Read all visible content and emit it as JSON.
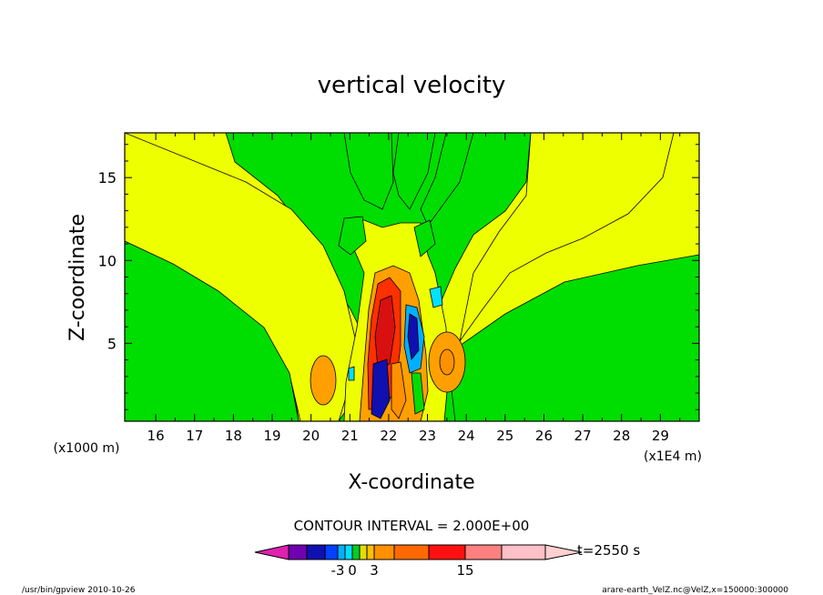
{
  "chart_data": {
    "type": "heatmap",
    "title": "vertical velocity",
    "xlabel": "X-coordinate",
    "ylabel": "Z-coordinate",
    "x_unit_note": "(x1E4 m)",
    "y_unit_note": "(x1000 m)",
    "xlim": [
      15.2,
      30
    ],
    "ylim": [
      0.3,
      17.7
    ],
    "x_ticks": [
      "16",
      "17",
      "18",
      "19",
      "20",
      "21",
      "22",
      "23",
      "24",
      "25",
      "26",
      "27",
      "28",
      "29"
    ],
    "y_ticks": [
      "5",
      "10",
      "15"
    ],
    "contour_interval_text": "CONTOUR INTERVAL = 2.000E+00",
    "time_text": "t=2550 s",
    "colorbar": {
      "levels": [
        "-3",
        "0",
        "3",
        "15"
      ],
      "colors": [
        "#e020b0",
        "#7000b0",
        "#1010b0",
        "#0040ff",
        "#00b0ff",
        "#00e0ff",
        "#00d020",
        "#e0e000",
        "#ffc000",
        "#ff9000",
        "#ff6a00",
        "#ff1010",
        "#ff8080",
        "#ffc0c8",
        "#ffd0d0"
      ]
    },
    "features": [
      {
        "name": "background",
        "value": 0,
        "color": "#00dd00"
      },
      {
        "name": "upper-weak-updraft",
        "value": 1,
        "color": "#eeff00"
      },
      {
        "name": "main-updraft-core",
        "x": 21.8,
        "z": 6,
        "value": 15,
        "color": "#ff1010"
      },
      {
        "name": "downdraft-core",
        "x": 22.4,
        "z": 5,
        "value": -5,
        "color": "#0000c0"
      },
      {
        "name": "right-updraft-cell",
        "x": 23.4,
        "z": 4,
        "value": 3,
        "color": "#ffa000"
      },
      {
        "name": "left-updraft-cell",
        "x": 20.2,
        "z": 2.8,
        "value": 3,
        "color": "#ffa000"
      }
    ]
  },
  "footer": {
    "left": "/usr/bin/gpview   2010-10-26",
    "right": "arare-earth_VelZ.nc@VelZ,x=150000:300000"
  }
}
